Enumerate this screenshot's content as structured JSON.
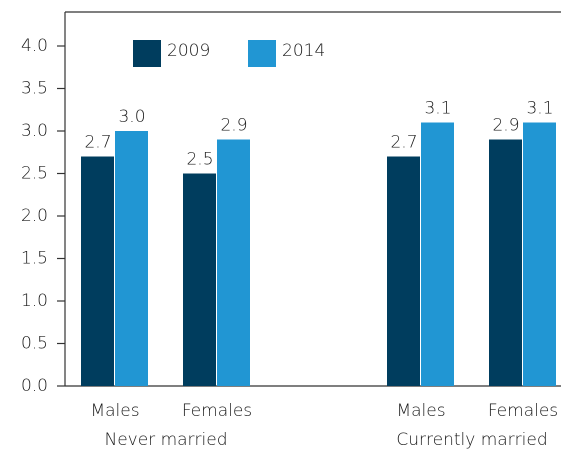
{
  "chart_data": {
    "type": "bar",
    "categories": [
      "Males",
      "Females",
      "Males",
      "Females"
    ],
    "category_groups": [
      "Never married",
      "Currently married"
    ],
    "series": [
      {
        "name": "2009",
        "color": "#003d5e",
        "values": [
          2.7,
          2.5,
          2.7,
          2.9
        ],
        "value_labels": [
          "2.7",
          "2.5",
          "2.7",
          "2.9"
        ]
      },
      {
        "name": "2014",
        "color": "#2196d3",
        "values": [
          3.0,
          2.9,
          3.1,
          3.1
        ],
        "value_labels": [
          "3.0",
          "2.9",
          "3.1",
          "3.1"
        ]
      }
    ],
    "ylim": [
      0,
      4.4
    ],
    "yticks": [
      {
        "value": 0,
        "label": "0.0"
      },
      {
        "value": 0.5,
        "label": "0.5"
      },
      {
        "value": 1,
        "label": "1.0"
      },
      {
        "value": 1.5,
        "label": "1.5"
      },
      {
        "value": 2,
        "label": "2.0"
      },
      {
        "value": 2.5,
        "label": "2.5"
      },
      {
        "value": 3,
        "label": "3.0"
      },
      {
        "value": 3.5,
        "label": "3.5"
      },
      {
        "value": 4,
        "label": "4.0"
      }
    ],
    "legend": "top-left"
  }
}
